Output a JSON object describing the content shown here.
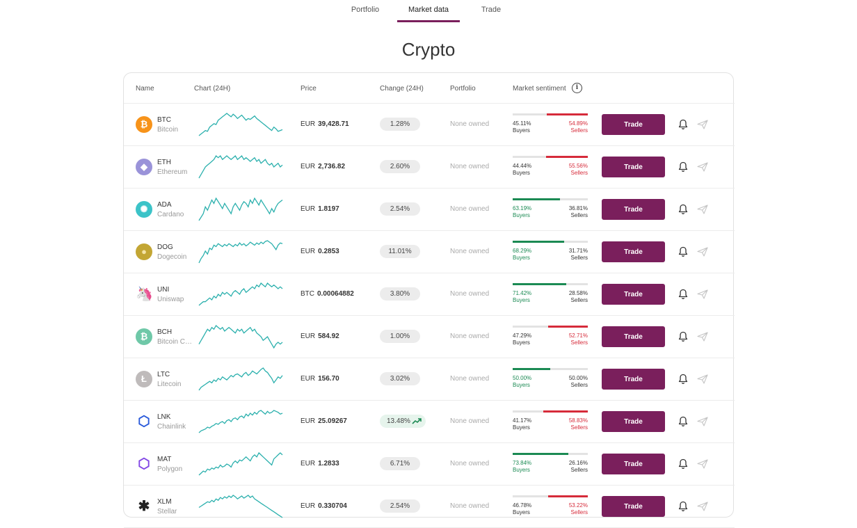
{
  "tabs": [
    {
      "label": "Portfolio"
    },
    {
      "label": "Market data"
    },
    {
      "label": "Trade"
    }
  ],
  "title": "Crypto",
  "table": {
    "headers": {
      "name": "Name",
      "chart": "Chart (24H)",
      "price": "Price",
      "change": "Change (24H)",
      "portfolio": "Portfolio",
      "sentiment": "Market sentiment",
      "info_icon": "i"
    },
    "rows": [
      {
        "symbol": "BTC",
        "name": "Bitcoin",
        "icon": "bitcoin-icon",
        "icon_color": "#f7931a",
        "icon_glyph": "₿",
        "currency": "EUR",
        "price": "39,428.71",
        "change": "1.28%",
        "portfolio": "None owned",
        "buyers_pct": "45.11%",
        "buyers_label": "Buyers",
        "sellers_pct": "54.89%",
        "sellers_label": "Sellers",
        "buyers": 45.11,
        "dominant": "sellers",
        "trade_label": "Trade",
        "spark": [
          30,
          28,
          26,
          24,
          25,
          20,
          18,
          16,
          17,
          12,
          10,
          8,
          6,
          4,
          6,
          8,
          5,
          7,
          10,
          8,
          6,
          9,
          12,
          10,
          11,
          9,
          7,
          10,
          12,
          14,
          16,
          18,
          20,
          22,
          24,
          20,
          22,
          25,
          24,
          23
        ]
      },
      {
        "symbol": "ETH",
        "name": "Ethereum",
        "icon": "ethereum-icon",
        "icon_color": "#9a93d9",
        "icon_glyph": "◆",
        "currency": "EUR",
        "price": "2,736.82",
        "change": "2.60%",
        "portfolio": "None owned",
        "buyers_pct": "44.44%",
        "buyers_label": "Buyers",
        "sellers_pct": "55.56%",
        "sellers_label": "Sellers",
        "buyers": 44.44,
        "dominant": "sellers",
        "trade_label": "Trade",
        "spark": [
          24,
          22,
          20,
          18,
          17,
          16,
          15,
          14,
          12,
          13,
          12,
          14,
          13,
          12,
          13,
          14,
          13,
          12,
          14,
          13,
          12,
          14,
          13,
          14,
          15,
          14,
          13,
          15,
          14,
          16,
          15,
          14,
          16,
          17,
          16,
          18,
          17,
          16,
          18,
          17
        ]
      },
      {
        "symbol": "ADA",
        "name": "Cardano",
        "icon": "cardano-icon",
        "icon_color": "#3cc3c8",
        "icon_glyph": "✺",
        "currency": "EUR",
        "price": "1.8197",
        "change": "2.54%",
        "portfolio": "None owned",
        "buyers_pct": "63.19%",
        "buyers_label": "Buyers",
        "sellers_pct": "36.81%",
        "sellers_label": "Sellers",
        "buyers": 63.19,
        "dominant": "buyers",
        "trade_label": "Trade",
        "spark": [
          26,
          24,
          22,
          18,
          20,
          17,
          14,
          16,
          13,
          15,
          17,
          19,
          16,
          18,
          20,
          22,
          18,
          16,
          18,
          20,
          17,
          15,
          16,
          18,
          14,
          16,
          13,
          15,
          17,
          14,
          16,
          18,
          20,
          22,
          19,
          21,
          18,
          16,
          15,
          14
        ]
      },
      {
        "symbol": "DOG",
        "name": "Dogecoin",
        "icon": "dogecoin-icon",
        "icon_color": "#c3a634",
        "icon_glyph": "●",
        "currency": "EUR",
        "price": "0.2853",
        "change": "11.01%",
        "portfolio": "None owned",
        "buyers_pct": "68.29%",
        "buyers_label": "Buyers",
        "sellers_pct": "31.71%",
        "sellers_label": "Sellers",
        "buyers": 68.29,
        "dominant": "buyers",
        "trade_label": "Trade",
        "spark": [
          36,
          30,
          26,
          20,
          24,
          16,
          18,
          12,
          14,
          10,
          12,
          14,
          11,
          13,
          10,
          12,
          14,
          11,
          13,
          9,
          12,
          10,
          13,
          11,
          8,
          10,
          12,
          9,
          11,
          8,
          10,
          7,
          6,
          8,
          10,
          14,
          18,
          12,
          9,
          10
        ]
      },
      {
        "symbol": "UNI",
        "name": "Uniswap",
        "icon": "uniswap-icon",
        "icon_color": "#ff007a",
        "icon_glyph": "🦄",
        "currency": "BTC",
        "price": "0.00064882",
        "change": "3.80%",
        "portfolio": "None owned",
        "buyers_pct": "71.42%",
        "buyers_label": "Buyers",
        "sellers_pct": "28.58%",
        "sellers_label": "Sellers",
        "buyers": 71.42,
        "dominant": "buyers",
        "trade_label": "Trade",
        "spark": [
          22,
          21,
          20,
          20,
          19,
          18,
          19,
          17,
          18,
          16,
          17,
          15,
          16,
          15,
          16,
          17,
          15,
          14,
          15,
          16,
          14,
          13,
          15,
          14,
          13,
          12,
          13,
          11,
          12,
          10,
          11,
          12,
          10,
          11,
          12,
          11,
          12,
          13,
          12,
          13
        ]
      },
      {
        "symbol": "BCH",
        "name": "Bitcoin C…",
        "icon": "bitcoin-cash-icon",
        "icon_color": "#6fc8a8",
        "icon_glyph": "₿",
        "currency": "EUR",
        "price": "584.92",
        "change": "1.00%",
        "portfolio": "None owned",
        "buyers_pct": "47.29%",
        "buyers_label": "Buyers",
        "sellers_pct": "52.71%",
        "sellers_label": "Sellers",
        "buyers": 47.29,
        "dominant": "sellers",
        "trade_label": "Trade",
        "spark": [
          20,
          18,
          16,
          14,
          12,
          13,
          11,
          12,
          10,
          11,
          12,
          11,
          13,
          12,
          11,
          12,
          13,
          14,
          12,
          13,
          12,
          14,
          13,
          12,
          11,
          13,
          12,
          14,
          15,
          16,
          18,
          17,
          16,
          18,
          20,
          22,
          20,
          19,
          20,
          19
        ]
      },
      {
        "symbol": "LTC",
        "name": "Litecoin",
        "icon": "litecoin-icon",
        "icon_color": "#bfbbbb",
        "icon_glyph": "Ł",
        "currency": "EUR",
        "price": "156.70",
        "change": "3.02%",
        "portfolio": "None owned",
        "buyers_pct": "50.00%",
        "buyers_label": "Buyers",
        "sellers_pct": "50.00%",
        "sellers_label": "Sellers",
        "buyers": 50.0,
        "dominant": "buyers",
        "trade_label": "Trade",
        "spark": [
          34,
          30,
          28,
          26,
          24,
          22,
          24,
          20,
          22,
          18,
          20,
          16,
          18,
          20,
          17,
          14,
          16,
          13,
          12,
          14,
          16,
          12,
          10,
          14,
          12,
          8,
          10,
          12,
          9,
          6,
          4,
          8,
          10,
          14,
          18,
          24,
          20,
          16,
          18,
          14
        ]
      },
      {
        "symbol": "LNK",
        "name": "Chainlink",
        "icon": "chainlink-icon",
        "icon_color": "#2a5ada",
        "icon_glyph": "⬡",
        "currency": "EUR",
        "price": "25.09267",
        "change": "13.48%",
        "trending": true,
        "portfolio": "None owned",
        "buyers_pct": "41.17%",
        "buyers_label": "Buyers",
        "sellers_pct": "58.83%",
        "sellers_label": "Sellers",
        "buyers": 41.17,
        "dominant": "sellers",
        "trade_label": "Trade",
        "spark": [
          32,
          30,
          29,
          28,
          26,
          27,
          25,
          24,
          22,
          23,
          21,
          20,
          22,
          19,
          18,
          20,
          17,
          16,
          18,
          15,
          14,
          16,
          12,
          14,
          11,
          13,
          10,
          12,
          9,
          8,
          10,
          12,
          9,
          11,
          10,
          8,
          9,
          10,
          12,
          11
        ]
      },
      {
        "symbol": "MAT",
        "name": "Polygon",
        "icon": "polygon-icon",
        "icon_color": "#8247e5",
        "icon_glyph": "⬡",
        "currency": "EUR",
        "price": "1.2833",
        "change": "6.71%",
        "portfolio": "None owned",
        "buyers_pct": "73.84%",
        "buyers_label": "Buyers",
        "sellers_pct": "26.16%",
        "sellers_label": "Sellers",
        "buyers": 73.84,
        "dominant": "buyers",
        "trade_label": "Trade",
        "spark": [
          32,
          30,
          28,
          29,
          26,
          27,
          25,
          26,
          24,
          25,
          22,
          24,
          23,
          21,
          22,
          24,
          20,
          18,
          20,
          17,
          18,
          16,
          14,
          16,
          18,
          14,
          12,
          14,
          10,
          12,
          14,
          16,
          18,
          20,
          22,
          16,
          14,
          12,
          10,
          12
        ]
      },
      {
        "symbol": "XLM",
        "name": "Stellar",
        "icon": "stellar-icon",
        "icon_color": "#222222",
        "icon_glyph": "✱",
        "currency": "EUR",
        "price": "0.330704",
        "change": "2.54%",
        "portfolio": "None owned",
        "buyers_pct": "46.78%",
        "buyers_label": "Buyers",
        "sellers_pct": "53.22%",
        "sellers_label": "Sellers",
        "buyers": 46.78,
        "dominant": "sellers",
        "trade_label": "Trade",
        "spark": [
          30,
          28,
          26,
          24,
          22,
          23,
          20,
          22,
          18,
          20,
          16,
          18,
          15,
          17,
          14,
          16,
          13,
          15,
          18,
          16,
          14,
          17,
          15,
          13,
          16,
          14,
          18,
          20,
          22,
          24,
          26,
          28,
          30,
          32,
          34,
          36,
          38,
          40,
          42,
          44
        ]
      }
    ]
  },
  "colors": {
    "accent": "#7a1f5c",
    "spark": "#2bb0ad",
    "buyers": "#1b8a53",
    "sellers": "#d62b3a"
  }
}
